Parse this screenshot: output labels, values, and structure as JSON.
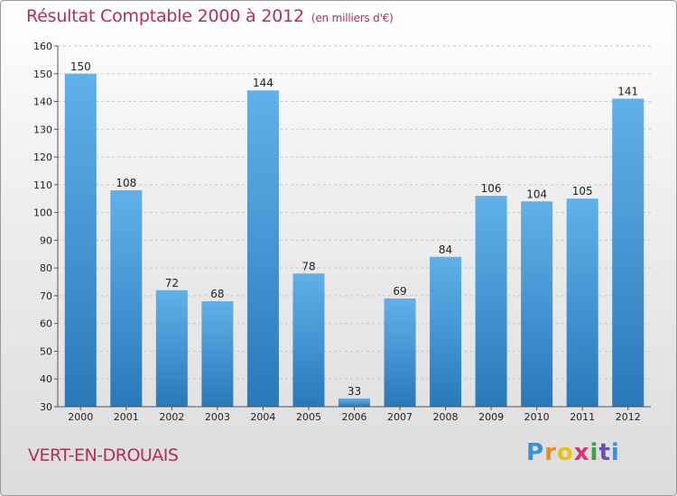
{
  "header": {
    "title": "Résultat Comptable 2000 à 2012",
    "subtitle": "(en milliers d'€)"
  },
  "footer": {
    "commune": "VERT-EN-DROUAIS",
    "logo": [
      "P",
      "r",
      "o",
      "x",
      "i",
      "t",
      "i"
    ]
  },
  "colors": {
    "bar_light": "#62b0ea",
    "bar_dark": "#2a78b8",
    "title": "#b0305a"
  },
  "chart_data": {
    "type": "bar",
    "title": "Résultat Comptable 2000 à 2012",
    "subtitle": "(en milliers d'€)",
    "categories": [
      "2000",
      "2001",
      "2002",
      "2003",
      "2004",
      "2005",
      "2006",
      "2007",
      "2008",
      "2009",
      "2010",
      "2011",
      "2012"
    ],
    "values": [
      150,
      108,
      72,
      68,
      144,
      78,
      33,
      69,
      84,
      106,
      104,
      105,
      141
    ],
    "ylim": [
      30,
      160
    ],
    "yticks": [
      30,
      40,
      50,
      60,
      70,
      80,
      90,
      100,
      110,
      120,
      130,
      140,
      150,
      160
    ],
    "grid": true,
    "xlabel": "",
    "ylabel": ""
  }
}
